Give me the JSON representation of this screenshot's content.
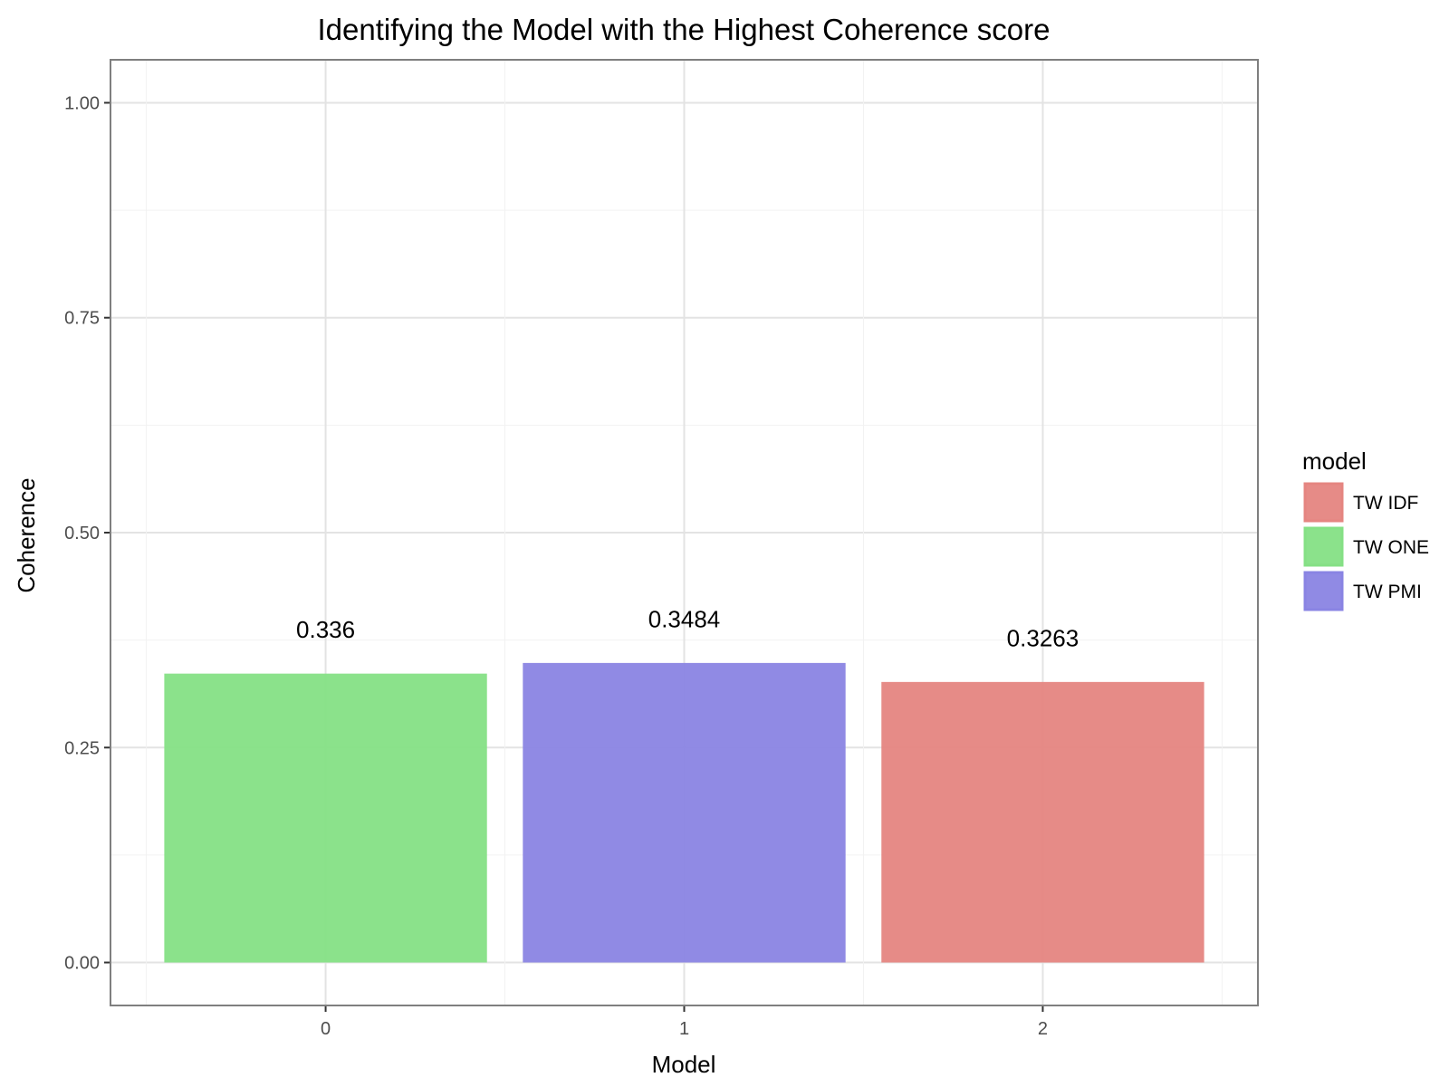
{
  "chart_data": {
    "type": "bar",
    "title": "Identifying the Model with the Highest Coherence score",
    "xlabel": "Model",
    "ylabel": "Coherence",
    "categories": [
      "0",
      "1",
      "2"
    ],
    "values": [
      0.336,
      0.3484,
      0.3263
    ],
    "value_labels": [
      "0.336",
      "0.3484",
      "0.3263"
    ],
    "bar_series": [
      "TW ONE",
      "TW PMI",
      "TW IDF"
    ],
    "y_ticks": [
      0.0,
      0.25,
      0.5,
      0.75,
      1.0
    ],
    "y_tick_labels": [
      "0.00",
      "0.25",
      "0.50",
      "0.75",
      "1.00"
    ],
    "ylim": [
      -0.05,
      1.05
    ],
    "xlim": [
      -0.6,
      2.6
    ],
    "grid": true,
    "legend": {
      "title": "model",
      "position": "right",
      "entries": [
        {
          "label": "TW IDF",
          "color": "#E58581"
        },
        {
          "label": "TW ONE",
          "color": "#85E085"
        },
        {
          "label": "TW PMI",
          "color": "#8A84E3"
        }
      ]
    }
  }
}
